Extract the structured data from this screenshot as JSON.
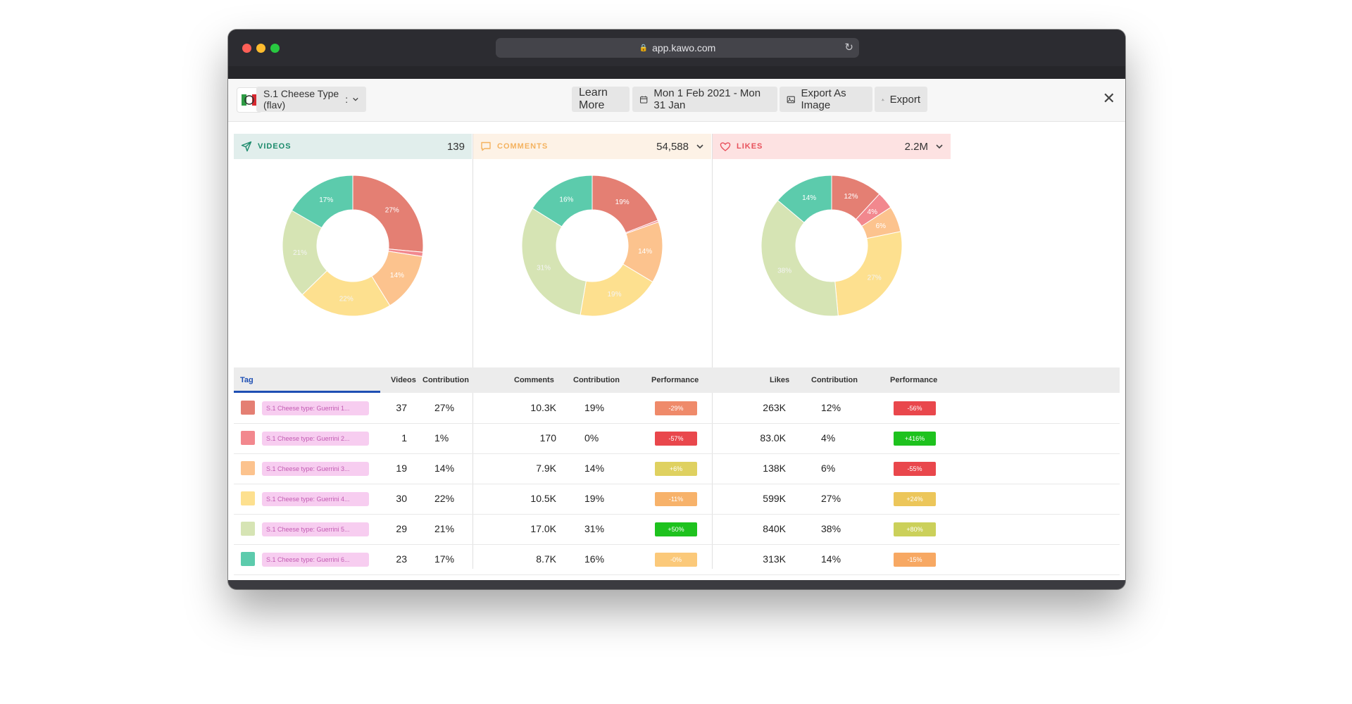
{
  "browser": {
    "url": "app.kawo.com"
  },
  "header": {
    "tag_group": "S.1 Cheese Type (flav)",
    "learn_more": "Learn More",
    "date_range": "Mon 1 Feb 2021 - Mon 31 Jan",
    "export_image": "Export As Image",
    "export": "Export",
    "close": "✕"
  },
  "panels": [
    {
      "label": "VIDEOS",
      "value": "139",
      "icon": "send-icon",
      "color": "#1b8a6b",
      "bg": "#e1eeec"
    },
    {
      "label": "COMMENTS",
      "value": "54,588",
      "icon": "comment-icon",
      "color": "#f4b25f",
      "bg": "#fdf2e6"
    },
    {
      "label": "LIKES",
      "value": "2.2M",
      "icon": "heart-icon",
      "color": "#e8505b",
      "bg": "#fde2e2"
    }
  ],
  "chart_data": [
    {
      "type": "pie",
      "series": [
        {
          "values": [
            27,
            1,
            14,
            22,
            21,
            17
          ]
        }
      ],
      "labels": [
        "27%",
        "",
        "14%",
        "22%",
        "21%",
        "17%"
      ]
    },
    {
      "type": "pie",
      "series": [
        {
          "values": [
            19,
            0.4,
            14,
            19,
            31,
            16
          ]
        }
      ],
      "labels": [
        "19%",
        "",
        "14%",
        "19%",
        "31%",
        "16%"
      ]
    },
    {
      "type": "pie",
      "series": [
        {
          "values": [
            12,
            4,
            6,
            27,
            38,
            14
          ]
        }
      ],
      "labels": [
        "12%",
        "4%",
        "6%",
        "27%",
        "38%",
        "14%"
      ]
    }
  ],
  "colors": [
    "#e47f73",
    "#f2888e",
    "#fcc38e",
    "#fde08f",
    "#d6e4b4",
    "#5ccbac"
  ],
  "table": {
    "headers": {
      "tag": "Tag",
      "videos": "Videos",
      "contribution": "Contribution",
      "comments": "Comments",
      "performance": "Performance",
      "likes": "Likes"
    },
    "rows": [
      {
        "tag": "S.1 Cheese type: Guerrini 1...",
        "videos": "37",
        "v_contrib": "27%",
        "comments": "10.3K",
        "c_contrib": "19%",
        "c_perf": "-29%",
        "c_perf_color": "#ef8a6a",
        "likes": "263K",
        "l_contrib": "12%",
        "l_perf": "-56%",
        "l_perf_color": "#e9474c"
      },
      {
        "tag": "S.1 Cheese type: Guerrini 2...",
        "videos": "1",
        "v_contrib": "1%",
        "comments": "170",
        "c_contrib": "0%",
        "c_perf": "-57%",
        "c_perf_color": "#e9474c",
        "likes": "83.0K",
        "l_contrib": "4%",
        "l_perf": "+416%",
        "l_perf_color": "#1ec21e"
      },
      {
        "tag": "S.1 Cheese type: Guerrini 3...",
        "videos": "19",
        "v_contrib": "14%",
        "comments": "7.9K",
        "c_contrib": "14%",
        "c_perf": "+6%",
        "c_perf_color": "#dfd160",
        "likes": "138K",
        "l_contrib": "6%",
        "l_perf": "-55%",
        "l_perf_color": "#e9474c"
      },
      {
        "tag": "S.1 Cheese type: Guerrini 4...",
        "videos": "30",
        "v_contrib": "22%",
        "comments": "10.5K",
        "c_contrib": "19%",
        "c_perf": "-11%",
        "c_perf_color": "#f7b26a",
        "likes": "599K",
        "l_contrib": "27%",
        "l_perf": "+24%",
        "l_perf_color": "#ecc65a"
      },
      {
        "tag": "S.1 Cheese type: Guerrini 5...",
        "videos": "29",
        "v_contrib": "21%",
        "comments": "17.0K",
        "c_contrib": "31%",
        "c_perf": "+50%",
        "c_perf_color": "#1ec21e",
        "likes": "840K",
        "l_contrib": "38%",
        "l_perf": "+80%",
        "l_perf_color": "#cbd05a"
      },
      {
        "tag": "S.1 Cheese type: Guerrini 6...",
        "videos": "23",
        "v_contrib": "17%",
        "comments": "8.7K",
        "c_contrib": "16%",
        "c_perf": "-0%",
        "c_perf_color": "#fbc97a",
        "likes": "313K",
        "l_contrib": "14%",
        "l_perf": "-15%",
        "l_perf_color": "#f7a863"
      }
    ]
  }
}
